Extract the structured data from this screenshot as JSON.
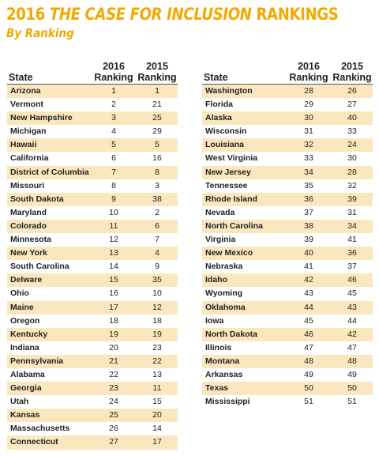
{
  "title": {
    "prefix": "2016 ",
    "emphasis": "THE CASE FOR INCLUSION",
    "suffix": " RANKINGS"
  },
  "subtitle": "By Ranking",
  "headers": {
    "state": "State",
    "col2016_line1": "2016",
    "col2016_line2": "Ranking",
    "col2015_line1": "2015",
    "col2015_line2": "Ranking"
  },
  "colors": {
    "accent": "#f2a900",
    "row_shade": "#fbe7bd"
  },
  "left_rows": [
    {
      "state": "Arizona",
      "r2016": "1",
      "r2015": "1"
    },
    {
      "state": "Vermont",
      "r2016": "2",
      "r2015": "21"
    },
    {
      "state": "New Hampshire",
      "r2016": "3",
      "r2015": "25"
    },
    {
      "state": "Michigan",
      "r2016": "4",
      "r2015": "29"
    },
    {
      "state": "Hawaii",
      "r2016": "5",
      "r2015": "5"
    },
    {
      "state": "California",
      "r2016": "6",
      "r2015": "16"
    },
    {
      "state": "District of Columbia",
      "r2016": "7",
      "r2015": "8"
    },
    {
      "state": "Missouri",
      "r2016": "8",
      "r2015": "3"
    },
    {
      "state": "South Dakota",
      "r2016": "9",
      "r2015": "38"
    },
    {
      "state": "Maryland",
      "r2016": "10",
      "r2015": "2"
    },
    {
      "state": "Colorado",
      "r2016": "11",
      "r2015": "6"
    },
    {
      "state": "Minnesota",
      "r2016": "12",
      "r2015": "7"
    },
    {
      "state": "New York",
      "r2016": "13",
      "r2015": "4"
    },
    {
      "state": "South Carolina",
      "r2016": "14",
      "r2015": "9"
    },
    {
      "state": "Delware",
      "r2016": "15",
      "r2015": "35"
    },
    {
      "state": "Ohio",
      "r2016": "16",
      "r2015": "10"
    },
    {
      "state": "Maine",
      "r2016": "17",
      "r2015": "12"
    },
    {
      "state": "Oregon",
      "r2016": "18",
      "r2015": "18"
    },
    {
      "state": "Kentucky",
      "r2016": "19",
      "r2015": "19"
    },
    {
      "state": "Indiana",
      "r2016": "20",
      "r2015": "23"
    },
    {
      "state": "Pennsylvania",
      "r2016": "21",
      "r2015": "22"
    },
    {
      "state": "Alabama",
      "r2016": "22",
      "r2015": "13"
    },
    {
      "state": "Georgia",
      "r2016": "23",
      "r2015": "11"
    },
    {
      "state": "Utah",
      "r2016": "24",
      "r2015": "15"
    },
    {
      "state": "Kansas",
      "r2016": "25",
      "r2015": "20"
    },
    {
      "state": "Massachusetts",
      "r2016": "26",
      "r2015": "14"
    },
    {
      "state": "Connecticut",
      "r2016": "27",
      "r2015": "17"
    }
  ],
  "right_rows": [
    {
      "state": "Washington",
      "r2016": "28",
      "r2015": "26"
    },
    {
      "state": "Florida",
      "r2016": "29",
      "r2015": "27"
    },
    {
      "state": "Alaska",
      "r2016": "30",
      "r2015": "40"
    },
    {
      "state": "Wisconsin",
      "r2016": "31",
      "r2015": "33"
    },
    {
      "state": "Louisiana",
      "r2016": "32",
      "r2015": "24"
    },
    {
      "state": "West Virginia",
      "r2016": "33",
      "r2015": "30"
    },
    {
      "state": "New Jersey",
      "r2016": "34",
      "r2015": "28"
    },
    {
      "state": "Tennessee",
      "r2016": "35",
      "r2015": "32"
    },
    {
      "state": "Rhode Island",
      "r2016": "36",
      "r2015": "39"
    },
    {
      "state": "Nevada",
      "r2016": "37",
      "r2015": "31"
    },
    {
      "state": "North Carolina",
      "r2016": "38",
      "r2015": "34"
    },
    {
      "state": "Virginia",
      "r2016": "39",
      "r2015": "41"
    },
    {
      "state": "New Mexico",
      "r2016": "40",
      "r2015": "36"
    },
    {
      "state": "Nebraska",
      "r2016": "41",
      "r2015": "37"
    },
    {
      "state": "Idaho",
      "r2016": "42",
      "r2015": "46"
    },
    {
      "state": "Wyoming",
      "r2016": "43",
      "r2015": "45"
    },
    {
      "state": "Oklahoma",
      "r2016": "44",
      "r2015": "43"
    },
    {
      "state": "Iowa",
      "r2016": "45",
      "r2015": "44"
    },
    {
      "state": "North Dakota",
      "r2016": "46",
      "r2015": "42"
    },
    {
      "state": "Illinois",
      "r2016": "47",
      "r2015": "47"
    },
    {
      "state": "Montana",
      "r2016": "48",
      "r2015": "48"
    },
    {
      "state": "Arkansas",
      "r2016": "49",
      "r2015": "49"
    },
    {
      "state": "Texas",
      "r2016": "50",
      "r2015": "50"
    },
    {
      "state": "Mississippi",
      "r2016": "51",
      "r2015": "51"
    }
  ]
}
